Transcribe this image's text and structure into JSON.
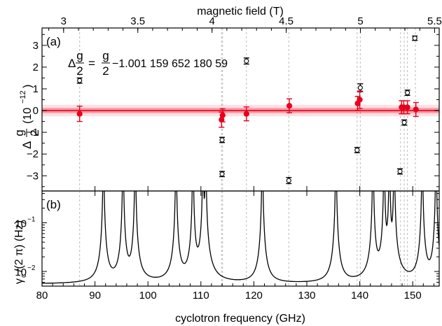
{
  "chart_data": [
    {
      "type": "scatter",
      "panel_label": "(a)",
      "top_axis": {
        "label": "magnetic field (T)",
        "ticks": [
          3,
          3.5,
          4,
          4.5,
          5,
          5.5
        ],
        "tick_labels": [
          "3",
          "3.5",
          "4",
          "4.5",
          "5",
          "5.5"
        ],
        "ghz_per_tesla": 28.025
      },
      "y_axis": {
        "label_prefix": "Δ",
        "label_frac_num": "g",
        "label_frac_den": "2",
        "label_units": "(10",
        "label_exp": "−12",
        "label_close": ")",
        "ylim": [
          -3.7,
          3.8
        ],
        "ticks": [
          -3,
          -2,
          -1,
          0,
          1,
          2,
          3
        ],
        "tick_labels": [
          "−3",
          "−2",
          "−1",
          "0",
          "1",
          "2",
          "3"
        ]
      },
      "annotation": {
        "lhs_prefix": "Δ",
        "lhs_num": "g",
        "lhs_den": "2",
        "eq": "=",
        "rhs_num": "g",
        "rhs_den": "2",
        "rhs_rest": "−1.001 159 652 180 59"
      },
      "band": {
        "center": 0,
        "halfwidth": 0.12,
        "color": "#e8001c"
      },
      "series": [
        {
          "name": "",
          "style": "open-circle",
          "color": "#000000",
          "x": [
            87.1,
            114.0,
            114.0,
            118.6,
            126.6,
            139.5,
            140.1,
            147.6,
            148.4,
            149.0,
            150.4
          ],
          "y": [
            1.38,
            -1.35,
            -2.92,
            2.28,
            -3.22,
            -1.82,
            1.05,
            -2.8,
            -0.55,
            0.82,
            3.33
          ],
          "err": [
            0.12,
            0.12,
            0.12,
            0.14,
            0.14,
            0.12,
            0.18,
            0.12,
            0.12,
            0.12,
            0.1
          ]
        },
        {
          "name": "",
          "style": "filled-circle",
          "color": "#e8001c",
          "x": [
            87.1,
            113.9,
            114.1,
            118.6,
            126.7,
            139.6,
            140.0,
            147.9,
            148.3,
            149.0,
            150.6
          ],
          "y": [
            -0.15,
            -0.42,
            -0.22,
            -0.15,
            0.22,
            0.33,
            0.5,
            0.15,
            0.15,
            0.15,
            0.05
          ],
          "err": [
            0.35,
            0.35,
            0.3,
            0.32,
            0.32,
            0.32,
            0.4,
            0.3,
            0.3,
            0.3,
            0.32
          ]
        }
      ],
      "vlines_x": [
        87.1,
        113.9,
        114.1,
        118.6,
        126.6,
        139.5,
        140.1,
        147.7,
        148.4,
        149.0,
        150.5
      ]
    },
    {
      "type": "line",
      "panel_label": "(b)",
      "xlabel": "cyclotron frequency (GHz)",
      "xlim": [
        80,
        155
      ],
      "x_ticks": [
        80,
        90,
        100,
        110,
        120,
        130,
        140,
        150
      ],
      "x_tick_labels": [
        "80",
        "90",
        "100",
        "110",
        "120",
        "130",
        "140",
        "150"
      ],
      "y_axis": {
        "label_gamma": "γ",
        "label_sub": "c",
        "label_rest": "/(2 π) (Hz)",
        "scale": "log",
        "ylim": [
          0.005,
          0.45
        ],
        "tick_mantissa": "10",
        "tick_exps": [
          "−2",
          "−1"
        ],
        "tick_values": [
          0.01,
          0.1
        ]
      },
      "resonances_ghz": [
        91.6,
        95.3,
        97.6,
        105.3,
        108.5,
        110.4,
        110.9,
        121.6,
        135.5,
        142.5,
        144.6,
        145.6,
        146.5,
        151.8,
        154.4
      ],
      "baseline": 0.0055,
      "width_scale": 0.0095
    }
  ]
}
